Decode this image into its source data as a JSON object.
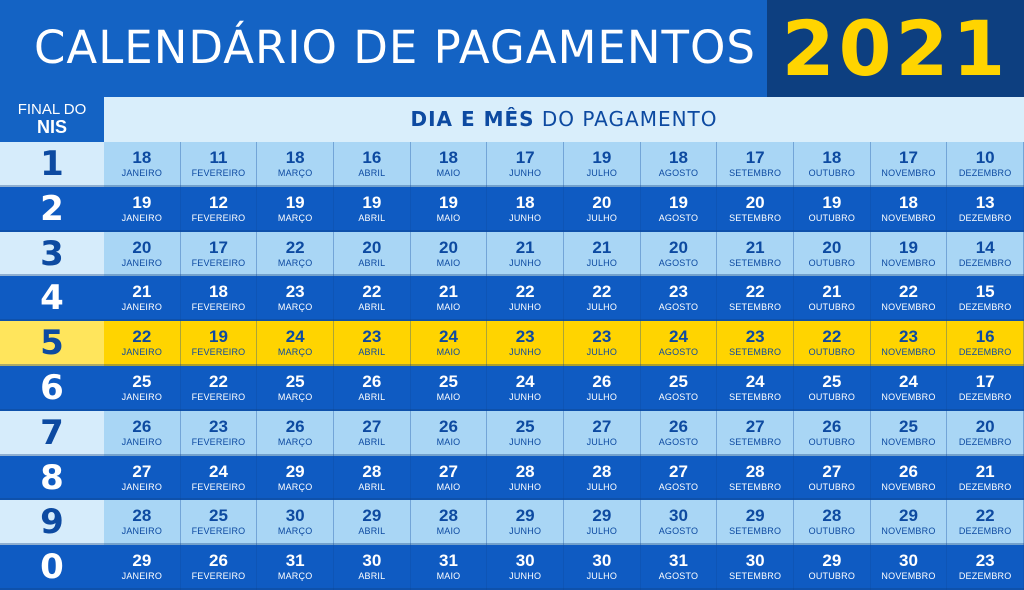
{
  "header": {
    "title": "CALENDÁRIO DE PAGAMENTOS",
    "year": "2021",
    "nis_label_line1": "FINAL DO",
    "nis_label_line2": "NIS",
    "subheader_bold": "DIA E MÊS",
    "subheader_rest": " DO PAGAMENTO"
  },
  "colors": {
    "blue_dark": "#0f5bc2",
    "blue_light": "#a9d6f5",
    "yellow": "#ffd400",
    "navy": "#0d3f80"
  },
  "months": [
    "JANEIRO",
    "FEVEREIRO",
    "MARÇO",
    "ABRIL",
    "MAIO",
    "JUNHO",
    "JULHO",
    "AGOSTO",
    "SETEMBRO",
    "OUTUBRO",
    "NOVEMBRO",
    "DEZEMBRO"
  ],
  "highlighted_nis": "5",
  "rows": [
    {
      "nis": "1",
      "days": [
        "18",
        "11",
        "18",
        "16",
        "18",
        "17",
        "19",
        "18",
        "17",
        "18",
        "17",
        "10"
      ]
    },
    {
      "nis": "2",
      "days": [
        "19",
        "12",
        "19",
        "19",
        "19",
        "18",
        "20",
        "19",
        "20",
        "19",
        "18",
        "13"
      ]
    },
    {
      "nis": "3",
      "days": [
        "20",
        "17",
        "22",
        "20",
        "20",
        "21",
        "21",
        "20",
        "21",
        "20",
        "19",
        "14"
      ]
    },
    {
      "nis": "4",
      "days": [
        "21",
        "18",
        "23",
        "22",
        "21",
        "22",
        "22",
        "23",
        "22",
        "21",
        "22",
        "15"
      ]
    },
    {
      "nis": "5",
      "days": [
        "22",
        "19",
        "24",
        "23",
        "24",
        "23",
        "23",
        "24",
        "23",
        "22",
        "23",
        "16"
      ]
    },
    {
      "nis": "6",
      "days": [
        "25",
        "22",
        "25",
        "26",
        "25",
        "24",
        "26",
        "25",
        "24",
        "25",
        "24",
        "17"
      ]
    },
    {
      "nis": "7",
      "days": [
        "26",
        "23",
        "26",
        "27",
        "26",
        "25",
        "27",
        "26",
        "27",
        "26",
        "25",
        "20"
      ]
    },
    {
      "nis": "8",
      "days": [
        "27",
        "24",
        "29",
        "28",
        "27",
        "28",
        "28",
        "27",
        "28",
        "27",
        "26",
        "21"
      ]
    },
    {
      "nis": "9",
      "days": [
        "28",
        "25",
        "30",
        "29",
        "28",
        "29",
        "29",
        "30",
        "29",
        "28",
        "29",
        "22"
      ]
    },
    {
      "nis": "0",
      "days": [
        "29",
        "26",
        "31",
        "30",
        "31",
        "30",
        "30",
        "31",
        "30",
        "29",
        "30",
        "23"
      ]
    }
  ]
}
